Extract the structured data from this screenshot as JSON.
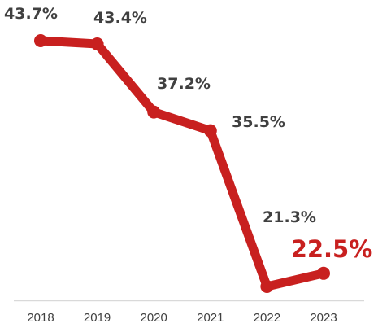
{
  "chart_data": {
    "type": "line",
    "title": "",
    "xlabel": "",
    "ylabel": "",
    "x": [
      "2018",
      "2019",
      "2020",
      "2021",
      "2022",
      "2023"
    ],
    "series": [
      {
        "values": [
          43.7,
          43.4,
          37.2,
          35.5,
          21.3,
          22.5
        ],
        "labels": [
          "43.7%",
          "43.4%",
          "37.2%",
          "35.5%",
          "21.3%",
          "22.5%"
        ],
        "color": "#c8201f"
      }
    ],
    "highlight_index": 5,
    "highlight_color": "#c8201f",
    "label_color": "#404040",
    "grid": false,
    "legend": "none",
    "y_axis_visible": false
  }
}
